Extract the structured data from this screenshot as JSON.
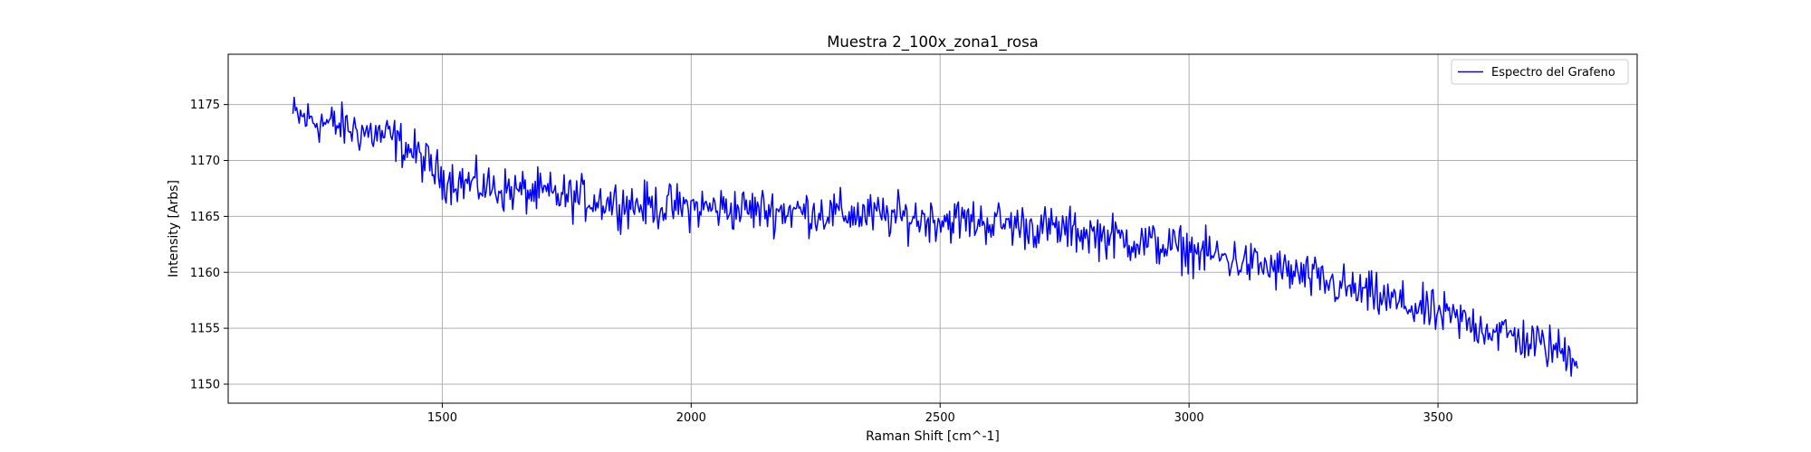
{
  "chart_data": {
    "type": "line",
    "title": "Muestra 2_100x_zona1_rosa",
    "xlabel": "Raman Shift [cm^-1]",
    "ylabel": "Intensity [Arbs]",
    "xlim": [
      1070,
      3900
    ],
    "ylim": [
      1148.3,
      1179.5
    ],
    "xticks": [
      1500,
      2000,
      2500,
      3000,
      3500
    ],
    "yticks": [
      1150,
      1155,
      1160,
      1165,
      1170,
      1175
    ],
    "grid": true,
    "legend_position": "top-right",
    "series": [
      {
        "name": "Espectro del Grafeno",
        "color": "#0000ff",
        "x_range": [
          1200,
          3780
        ],
        "trend": [
          [
            1200,
            1174.0
          ],
          [
            1250,
            1173.5
          ],
          [
            1300,
            1173.0
          ],
          [
            1350,
            1172.5
          ],
          [
            1400,
            1172.0
          ],
          [
            1450,
            1170.5
          ],
          [
            1500,
            1168.5
          ],
          [
            1600,
            1167.5
          ],
          [
            1700,
            1167.0
          ],
          [
            1800,
            1166.5
          ],
          [
            1900,
            1166.0
          ],
          [
            2000,
            1165.8
          ],
          [
            2200,
            1165.5
          ],
          [
            2400,
            1165.0
          ],
          [
            2600,
            1164.5
          ],
          [
            2800,
            1163.5
          ],
          [
            3000,
            1162.0
          ],
          [
            3200,
            1160.0
          ],
          [
            3400,
            1157.5
          ],
          [
            3600,
            1155.0
          ],
          [
            3780,
            1152.5
          ]
        ],
        "noise_amplitude": 2.2,
        "n_points": 1024
      }
    ]
  }
}
